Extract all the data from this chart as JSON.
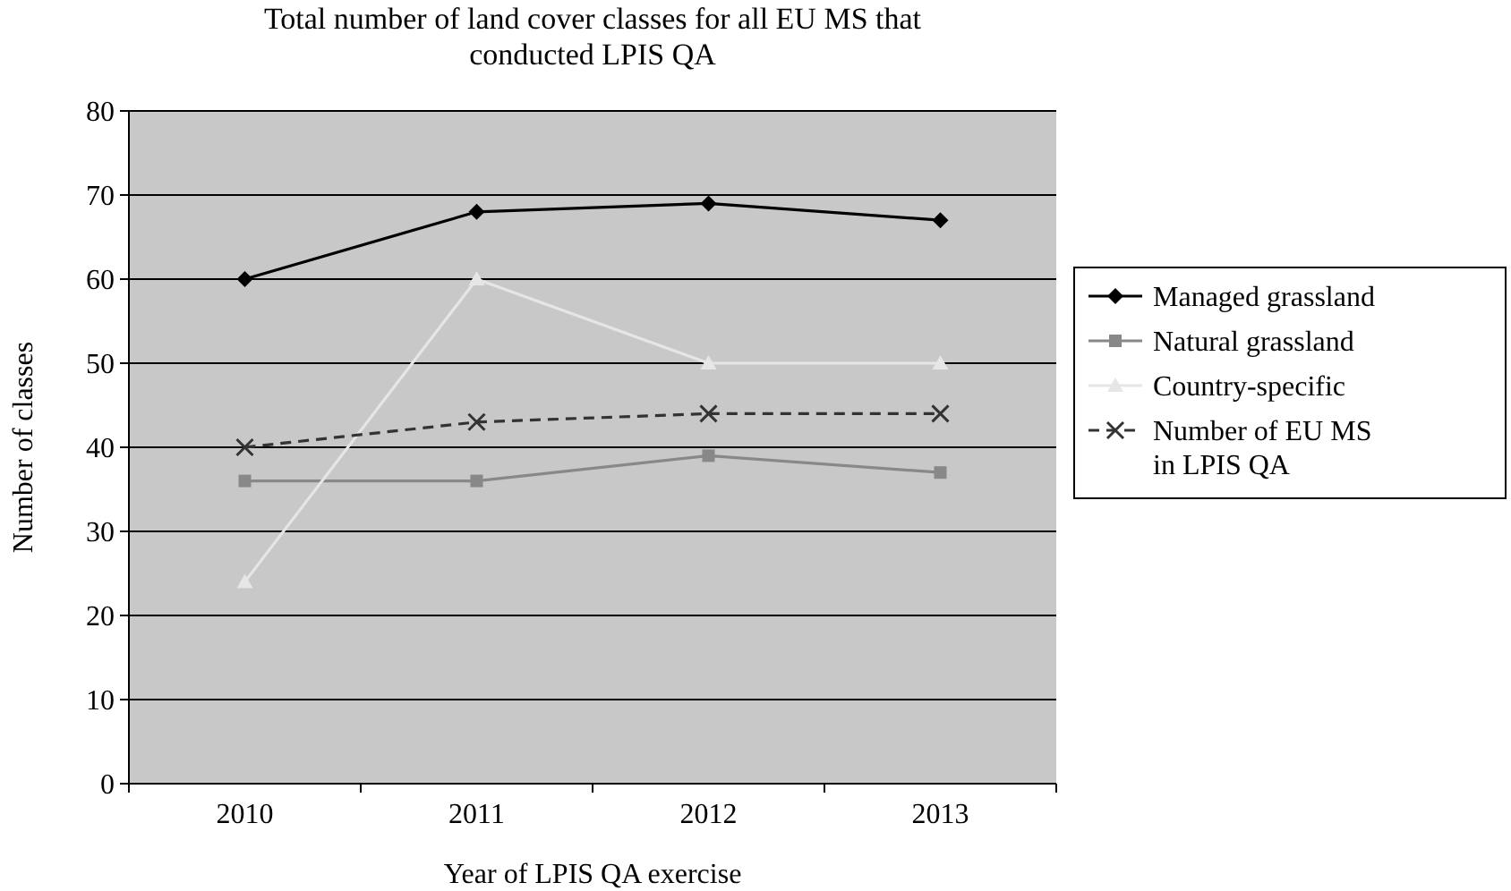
{
  "chart_data": {
    "type": "line",
    "title": "Total number of land cover classes for all EU MS that conducted LPIS QA",
    "xlabel": "Year of LPIS QA exercise",
    "ylabel": "Number of classes",
    "categories": [
      "2010",
      "2011",
      "2012",
      "2013"
    ],
    "series": [
      {
        "name": "Managed grassland",
        "color": "#000000",
        "values": [
          60,
          68,
          69,
          67
        ],
        "marker": "diamond",
        "line_style": "solid"
      },
      {
        "name": "Natural grassland",
        "color": "#888888",
        "values": [
          36,
          36,
          39,
          37
        ],
        "marker": "square",
        "line_style": "solid"
      },
      {
        "name": "Country-specific",
        "color": "#e6e6e6",
        "values": [
          24,
          60,
          50,
          50
        ],
        "marker": "triangle",
        "line_style": "solid"
      },
      {
        "name": "Number of EU MS in LPIS QA",
        "color": "#333333",
        "values": [
          40,
          43,
          44,
          44
        ],
        "marker": "cross",
        "line_style": "dashed"
      }
    ],
    "ylim": [
      0,
      80
    ],
    "yticks": [
      0,
      10,
      20,
      30,
      40,
      50,
      60,
      70,
      80
    ],
    "grid": "y",
    "legend": "right"
  }
}
